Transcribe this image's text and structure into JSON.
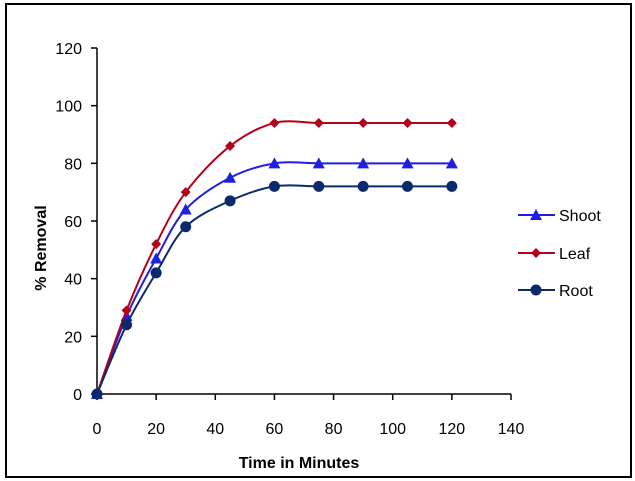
{
  "chart_data": {
    "type": "line",
    "title": "",
    "xlabel": "Time in Minutes",
    "ylabel": "% Removal",
    "xlim": [
      0,
      140
    ],
    "ylim": [
      0,
      120
    ],
    "xticks": [
      0,
      20,
      40,
      60,
      80,
      100,
      120,
      140
    ],
    "yticks": [
      0,
      20,
      40,
      60,
      80,
      100,
      120
    ],
    "grid": false,
    "legend_position": "right",
    "x": [
      0,
      10,
      20,
      30,
      45,
      60,
      75,
      90,
      105,
      120
    ],
    "series": [
      {
        "name": "Shoot",
        "marker": "triangle",
        "color": "#1f1fe0",
        "values": [
          0,
          27,
          47,
          64,
          75,
          80,
          80,
          80,
          80,
          80
        ]
      },
      {
        "name": "Leaf",
        "marker": "diamond",
        "color": "#b3001b",
        "values": [
          0,
          29,
          52,
          70,
          86,
          94,
          94,
          94,
          94,
          94
        ]
      },
      {
        "name": "Root",
        "marker": "circle",
        "color": "#0b2a6b",
        "values": [
          0,
          24,
          42,
          58,
          67,
          72,
          72,
          72,
          72,
          72
        ]
      }
    ]
  }
}
